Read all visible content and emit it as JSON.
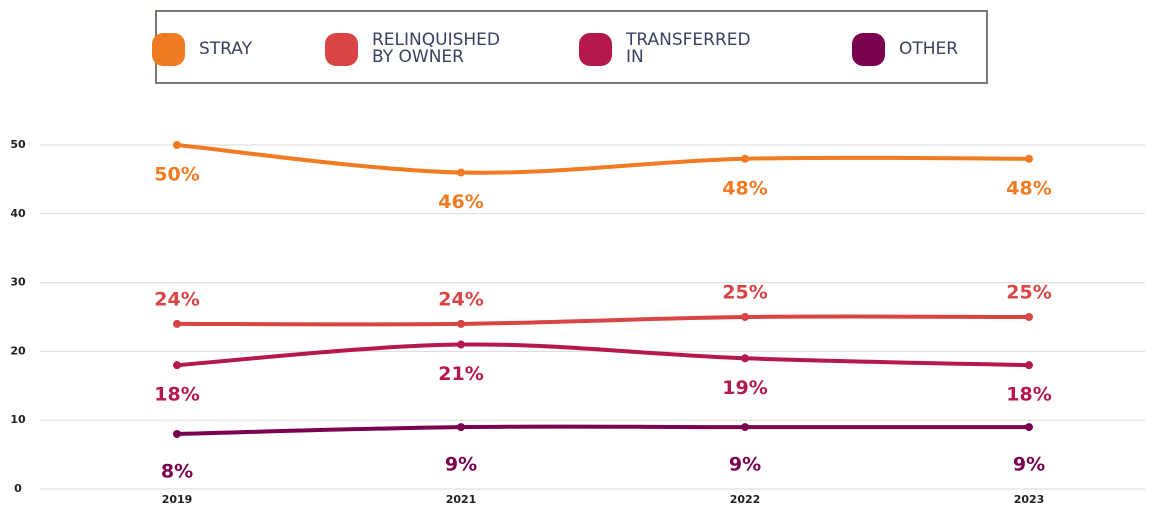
{
  "chart_data": {
    "type": "line",
    "categories": [
      "2019",
      "2021",
      "2022",
      "2023"
    ],
    "series": [
      {
        "name": "STRAY",
        "color": "#f07b22",
        "values": [
          50,
          46,
          48,
          48
        ],
        "value_labels": [
          "50%",
          "46%",
          "48%",
          "48%"
        ]
      },
      {
        "name": "RELINQUISHED BY OWNER",
        "color": "#d94444",
        "values": [
          24,
          24,
          25,
          25
        ],
        "value_labels": [
          "24%",
          "24%",
          "25%",
          "25%"
        ]
      },
      {
        "name": "TRANSFERRED IN",
        "color": "#b5174f",
        "values": [
          18,
          21,
          19,
          18
        ],
        "value_labels": [
          "18%",
          "21%",
          "19%",
          "18%"
        ]
      },
      {
        "name": "OTHER",
        "color": "#7a0050",
        "values": [
          8,
          9,
          9,
          9
        ],
        "value_labels": [
          "8%",
          "9%",
          "9%",
          "9%"
        ]
      }
    ],
    "ylim": [
      0,
      50
    ],
    "yticks": [
      0,
      10,
      20,
      30,
      40,
      50
    ],
    "grid": true
  }
}
